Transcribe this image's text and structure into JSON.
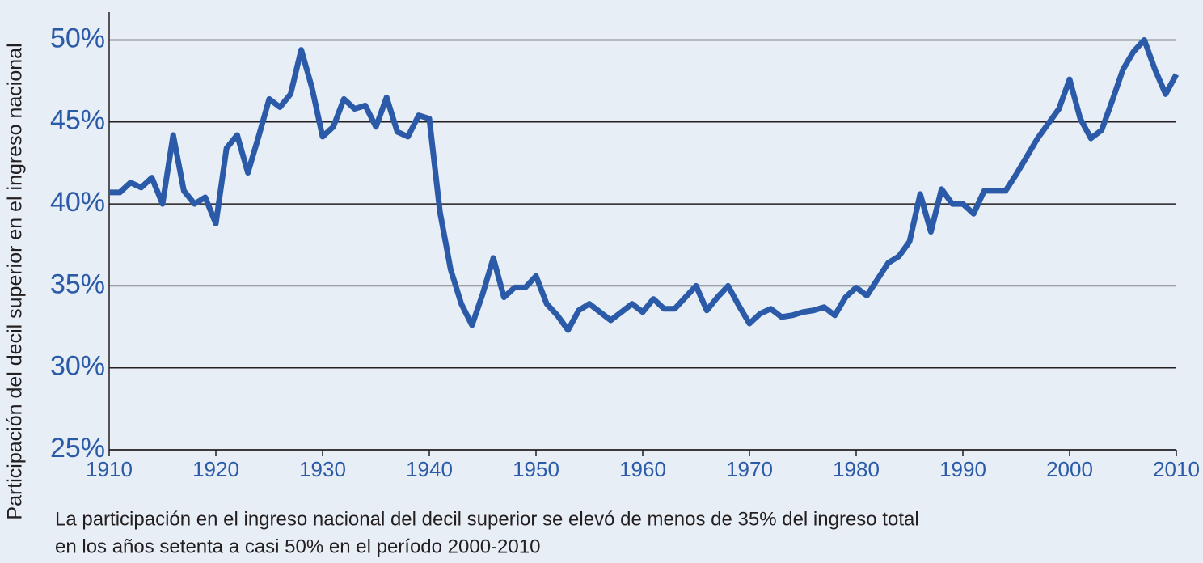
{
  "chart_data": {
    "type": "line",
    "ylabel": "Participación del decil superior en el ingreso nacional",
    "notes": [
      "La participación en el ingreso nacional del decil superior se elevó de menos de 35% del ingreso total",
      "en los años setenta a casi 50% en el período 2000-2010"
    ],
    "x": [
      1910,
      1911,
      1912,
      1913,
      1914,
      1915,
      1916,
      1917,
      1918,
      1919,
      1920,
      1921,
      1922,
      1923,
      1924,
      1925,
      1926,
      1927,
      1928,
      1929,
      1930,
      1931,
      1932,
      1933,
      1934,
      1935,
      1936,
      1937,
      1938,
      1939,
      1940,
      1941,
      1942,
      1943,
      1944,
      1945,
      1946,
      1947,
      1948,
      1949,
      1950,
      1951,
      1952,
      1953,
      1954,
      1955,
      1956,
      1957,
      1958,
      1959,
      1960,
      1961,
      1962,
      1963,
      1964,
      1965,
      1966,
      1967,
      1968,
      1969,
      1970,
      1971,
      1972,
      1973,
      1974,
      1975,
      1976,
      1977,
      1978,
      1979,
      1980,
      1981,
      1982,
      1983,
      1984,
      1985,
      1986,
      1987,
      1988,
      1989,
      1990,
      1991,
      1992,
      1993,
      1994,
      1995,
      1996,
      1997,
      1998,
      1999,
      2000,
      2001,
      2002,
      2003,
      2004,
      2005,
      2006,
      2007,
      2008,
      2009,
      2010
    ],
    "series": [
      {
        "name": "Decil superior",
        "color": "#2b5ba8",
        "values": [
          40.7,
          40.7,
          41.3,
          41.0,
          41.6,
          40.0,
          44.2,
          40.8,
          40.0,
          40.4,
          38.8,
          43.4,
          44.2,
          41.9,
          44.1,
          46.4,
          45.9,
          46.7,
          49.4,
          47.1,
          44.1,
          44.7,
          46.4,
          45.8,
          46.0,
          44.7,
          46.5,
          44.4,
          44.1,
          45.4,
          45.2,
          39.5,
          36.0,
          33.9,
          32.6,
          34.5,
          36.7,
          34.3,
          34.9,
          34.9,
          35.6,
          33.9,
          33.2,
          32.3,
          33.5,
          33.9,
          33.4,
          32.9,
          33.4,
          33.9,
          33.4,
          34.2,
          33.6,
          33.6,
          34.3,
          35.0,
          33.5,
          34.3,
          35.0,
          33.8,
          32.7,
          33.3,
          33.6,
          33.1,
          33.2,
          33.4,
          33.5,
          33.7,
          33.2,
          34.3,
          34.9,
          34.4,
          35.4,
          36.4,
          36.8,
          37.7,
          40.6,
          38.3,
          40.9,
          40.0,
          40.0,
          39.4,
          40.8,
          40.8,
          40.8,
          41.8,
          42.9,
          44.0,
          44.9,
          45.8,
          47.6,
          45.2,
          44.0,
          44.5,
          46.3,
          48.2,
          49.3,
          50.0,
          48.2,
          46.7,
          47.9
        ]
      }
    ],
    "xlim": [
      1910,
      2010
    ],
    "xticks": [
      1910,
      1920,
      1930,
      1940,
      1950,
      1960,
      1970,
      1980,
      1990,
      2000,
      2010
    ],
    "ylim": [
      25,
      51.7
    ],
    "yticks": [
      {
        "value": 25,
        "label": "25%"
      },
      {
        "value": 30,
        "label": "30%"
      },
      {
        "value": 35,
        "label": "35%"
      },
      {
        "value": 40,
        "label": "40%"
      },
      {
        "value": 45,
        "label": "45%"
      },
      {
        "value": 50,
        "label": "50%"
      }
    ],
    "grid": true
  }
}
